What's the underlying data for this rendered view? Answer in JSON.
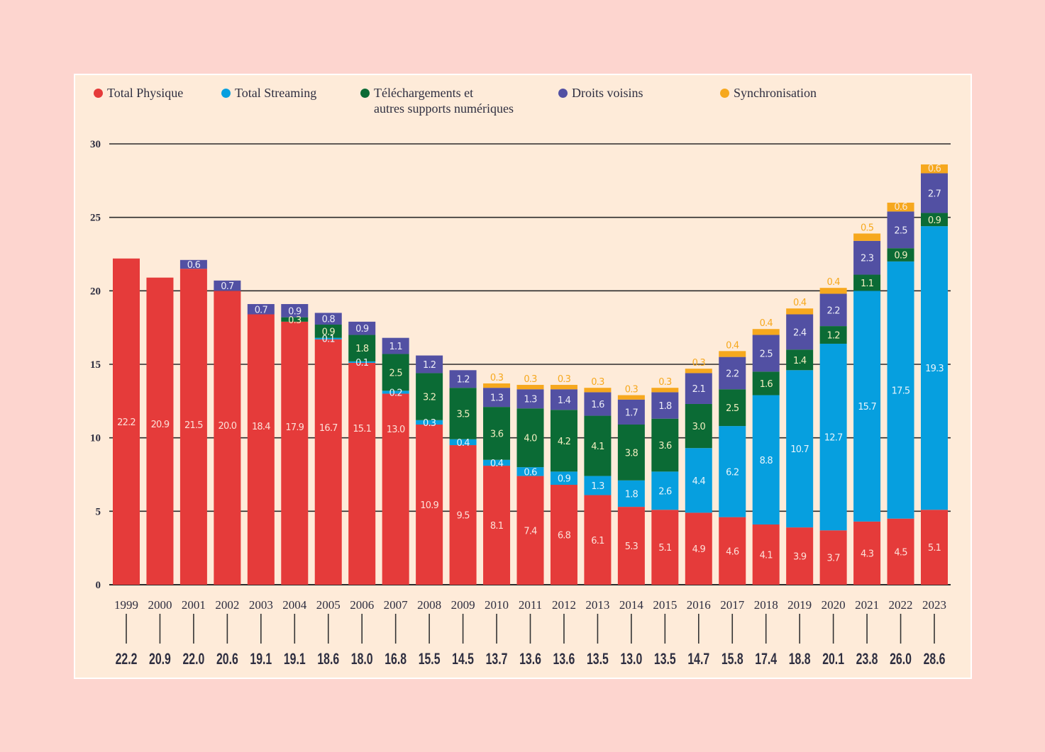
{
  "chart_data": {
    "type": "bar",
    "stacked": true,
    "title": "",
    "xlabel": "",
    "ylabel": "",
    "ylim": [
      0,
      30
    ],
    "yticks": [
      "0",
      "5",
      "10",
      "15",
      "20",
      "25",
      "30"
    ],
    "grid": true,
    "legend_position": "top",
    "categories": [
      "1999",
      "2000",
      "2001",
      "2002",
      "2003",
      "2004",
      "2005",
      "2006",
      "2007",
      "2008",
      "2009",
      "2010",
      "2011",
      "2012",
      "2013",
      "2014",
      "2015",
      "2016",
      "2017",
      "2018",
      "2019",
      "2020",
      "2021",
      "2022",
      "2023"
    ],
    "series": [
      {
        "name": "Total Physique",
        "color": "#e53b3a",
        "label_color": "#fde0d8",
        "values": [
          22.2,
          20.9,
          21.5,
          20.0,
          18.4,
          17.9,
          16.7,
          15.1,
          13.0,
          10.9,
          9.5,
          8.1,
          7.4,
          6.8,
          6.1,
          5.3,
          5.1,
          4.9,
          4.6,
          4.1,
          3.9,
          3.7,
          4.3,
          4.5,
          5.1
        ]
      },
      {
        "name": "Total Streaming",
        "color": "#069fdf",
        "label_color": "#e6f4fb",
        "values": [
          0,
          0,
          0,
          0,
          0,
          0,
          0.1,
          0.1,
          0.2,
          0.3,
          0.4,
          0.4,
          0.6,
          0.9,
          1.3,
          1.8,
          2.6,
          4.4,
          6.2,
          8.8,
          10.7,
          12.7,
          15.7,
          17.5,
          19.3
        ]
      },
      {
        "name": "Téléchargements et autres supports numériques",
        "legend_lines": [
          "Téléchargements et",
          "autres supports numériques"
        ],
        "color": "#0b6b35",
        "label_color": "#f1eec0",
        "values": [
          0,
          0,
          0,
          0,
          0,
          0.3,
          0.9,
          1.8,
          2.5,
          3.2,
          3.5,
          3.6,
          4.0,
          4.2,
          4.1,
          3.8,
          3.6,
          3.0,
          2.5,
          1.6,
          1.4,
          1.2,
          1.1,
          0.9,
          0.9
        ]
      },
      {
        "name": "Droits voisins",
        "color": "#5250a3",
        "label_color": "#ececf7",
        "values": [
          0,
          0,
          0.6,
          0.7,
          0.7,
          0.9,
          0.8,
          0.9,
          1.1,
          1.2,
          1.2,
          1.3,
          1.3,
          1.4,
          1.6,
          1.7,
          1.8,
          2.1,
          2.2,
          2.5,
          2.4,
          2.2,
          2.3,
          2.5,
          2.7
        ]
      },
      {
        "name": "Synchronisation",
        "color": "#f6a81e",
        "label_color": "#f6a81e",
        "values": [
          0,
          0,
          0,
          0,
          0,
          0,
          0,
          0,
          0,
          0,
          0,
          0.3,
          0.3,
          0.3,
          0.3,
          0.3,
          0.3,
          0.3,
          0.4,
          0.4,
          0.4,
          0.4,
          0.5,
          0.6,
          0.6
        ]
      }
    ],
    "totals": [
      "22.2",
      "20.9",
      "22.0",
      "20.6",
      "19.1",
      "19.1",
      "18.6",
      "18.0",
      "16.8",
      "15.5",
      "14.5",
      "13.7",
      "13.6",
      "13.6",
      "13.5",
      "13.0",
      "13.5",
      "14.7",
      "15.8",
      "17.4",
      "18.8",
      "20.1",
      "23.8",
      "26.0",
      "28.6"
    ]
  },
  "colors": {
    "page_background": "#fdd5cf",
    "panel_background": "#feebd9",
    "gridline": "#2b2b2b",
    "text": "#2e2e40"
  }
}
